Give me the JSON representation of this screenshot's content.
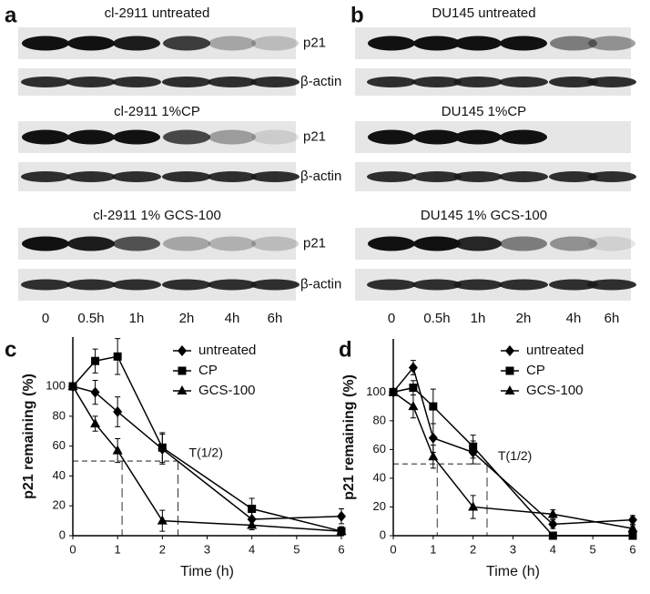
{
  "figure": {
    "panels": [
      {
        "label": "a",
        "blots": [
          {
            "title": "cl-2911 untreated",
            "rows": [
              "p21",
              "β-actin"
            ]
          },
          {
            "title": "cl-2911 1%CP",
            "rows": [
              "p21",
              "β-actin"
            ]
          },
          {
            "title": "cl-2911 1% GCS-100",
            "rows": [
              "p21",
              "β-actin"
            ]
          }
        ],
        "times": [
          "0",
          "0.5h",
          "1h",
          "2h",
          "4h",
          "6h"
        ]
      },
      {
        "label": "b",
        "blots": [
          {
            "title": "DU145  untreated"
          },
          {
            "title": "DU145  1%CP"
          },
          {
            "title": "DU145  1% GCS-100"
          }
        ],
        "times": [
          "0",
          "0.5h",
          "1h",
          "2h",
          "4h",
          "6h"
        ]
      }
    ]
  },
  "chart_data": [
    {
      "type": "line",
      "panel_label": "c",
      "xlabel": "Time (h)",
      "ylabel": "p21 remaining (%)",
      "x": [
        0,
        0.5,
        1,
        2,
        4,
        6
      ],
      "xlim": [
        0,
        6
      ],
      "xticks": [
        0,
        1,
        2,
        3,
        4,
        5,
        6
      ],
      "ylim": [
        0,
        133
      ],
      "yticks": [
        0,
        20,
        40,
        60,
        80,
        100
      ],
      "annotation": "T(1/2)",
      "hline": 50,
      "vlines": [
        1.1,
        2.35
      ],
      "series": [
        {
          "name": "untreated",
          "color": "#000000",
          "marker": "diamond",
          "values": [
            100,
            96,
            83,
            58,
            11,
            13
          ],
          "errors": [
            0,
            8,
            10,
            10,
            5,
            5
          ]
        },
        {
          "name": "CP",
          "color": "#000000",
          "marker": "square",
          "values": [
            100,
            117,
            120,
            59,
            18,
            3
          ],
          "errors": [
            0,
            8,
            12,
            10,
            7,
            3
          ]
        },
        {
          "name": "GCS-100",
          "color": "#000000",
          "marker": "triangle",
          "values": [
            100,
            75,
            57,
            10,
            7,
            3
          ],
          "errors": [
            0,
            5,
            8,
            7,
            3,
            2
          ]
        }
      ]
    },
    {
      "type": "line",
      "panel_label": "d",
      "xlabel": "Time (h)",
      "ylabel": "p21 remaining (%)",
      "x": [
        0,
        0.5,
        1,
        2,
        4,
        6
      ],
      "xlim": [
        0,
        6
      ],
      "xticks": [
        0,
        1,
        2,
        3,
        4,
        5,
        6
      ],
      "ylim": [
        0,
        137
      ],
      "yticks": [
        0,
        20,
        40,
        60,
        80,
        100
      ],
      "annotation": "T(1/2)",
      "hline": 50,
      "vlines": [
        1.1,
        2.35
      ],
      "series": [
        {
          "name": "untreated",
          "color": "#000000",
          "marker": "diamond",
          "values": [
            100,
            117,
            68,
            58,
            8,
            11
          ],
          "errors": [
            0,
            5,
            10,
            8,
            3,
            3
          ]
        },
        {
          "name": "CP",
          "color": "#000000",
          "marker": "square",
          "values": [
            100,
            103,
            90,
            62,
            0,
            0
          ],
          "errors": [
            0,
            5,
            12,
            8,
            0,
            2
          ]
        },
        {
          "name": "GCS-100",
          "color": "#000000",
          "marker": "triangle",
          "values": [
            100,
            90,
            55,
            20,
            15,
            5
          ],
          "errors": [
            0,
            8,
            8,
            8,
            3,
            2
          ]
        }
      ]
    }
  ]
}
